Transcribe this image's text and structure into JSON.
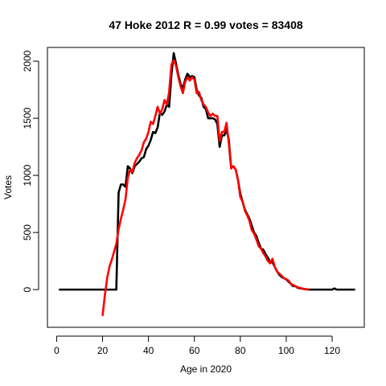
{
  "chart_data": {
    "type": "line",
    "title": "47 Hoke 2012 R = 0.99 votes = 83408",
    "xlabel": "Age in 2020",
    "ylabel": "Votes",
    "xlim": [
      -4,
      134
    ],
    "ylim": [
      -330,
      2120
    ],
    "x_ticks": [
      0,
      20,
      40,
      60,
      80,
      100,
      120
    ],
    "y_ticks": [
      0,
      500,
      1000,
      1500,
      2000
    ],
    "grid": false,
    "legend": "none",
    "series": [
      {
        "color": "#000000",
        "points": [
          [
            1,
            0
          ],
          [
            5,
            0
          ],
          [
            10,
            0
          ],
          [
            15,
            0
          ],
          [
            20,
            0
          ],
          [
            24,
            0
          ],
          [
            26,
            0
          ],
          [
            27,
            850
          ],
          [
            28,
            920
          ],
          [
            29,
            920
          ],
          [
            30,
            900
          ],
          [
            31,
            1080
          ],
          [
            32,
            1060
          ],
          [
            33,
            1020
          ],
          [
            34,
            1080
          ],
          [
            35,
            1100
          ],
          [
            36,
            1120
          ],
          [
            37,
            1150
          ],
          [
            38,
            1160
          ],
          [
            39,
            1230
          ],
          [
            40,
            1260
          ],
          [
            41,
            1310
          ],
          [
            42,
            1380
          ],
          [
            43,
            1370
          ],
          [
            44,
            1420
          ],
          [
            45,
            1550
          ],
          [
            46,
            1530
          ],
          [
            47,
            1560
          ],
          [
            48,
            1620
          ],
          [
            49,
            1600
          ],
          [
            50,
            1880
          ],
          [
            51,
            2070
          ],
          [
            52,
            1980
          ],
          [
            53,
            1880
          ],
          [
            54,
            1800
          ],
          [
            55,
            1760
          ],
          [
            56,
            1840
          ],
          [
            57,
            1890
          ],
          [
            58,
            1860
          ],
          [
            59,
            1870
          ],
          [
            60,
            1860
          ],
          [
            61,
            1750
          ],
          [
            62,
            1700
          ],
          [
            63,
            1680
          ],
          [
            64,
            1600
          ],
          [
            65,
            1580
          ],
          [
            66,
            1500
          ],
          [
            67,
            1500
          ],
          [
            68,
            1500
          ],
          [
            69,
            1490
          ],
          [
            70,
            1450
          ],
          [
            71,
            1250
          ],
          [
            72,
            1350
          ],
          [
            73,
            1350
          ],
          [
            74,
            1400
          ],
          [
            75,
            1310
          ],
          [
            76,
            1070
          ],
          [
            77,
            1080
          ],
          [
            78,
            1050
          ],
          [
            79,
            960
          ],
          [
            80,
            840
          ],
          [
            81,
            770
          ],
          [
            82,
            700
          ],
          [
            83,
            660
          ],
          [
            84,
            620
          ],
          [
            85,
            560
          ],
          [
            86,
            500
          ],
          [
            87,
            470
          ],
          [
            88,
            410
          ],
          [
            89,
            360
          ],
          [
            90,
            350
          ],
          [
            91,
            310
          ],
          [
            92,
            280
          ],
          [
            93,
            240
          ],
          [
            94,
            240
          ],
          [
            95,
            200
          ],
          [
            96,
            160
          ],
          [
            97,
            130
          ],
          [
            98,
            110
          ],
          [
            99,
            100
          ],
          [
            100,
            90
          ],
          [
            101,
            70
          ],
          [
            102,
            50
          ],
          [
            103,
            30
          ],
          [
            104,
            30
          ],
          [
            105,
            15
          ],
          [
            106,
            12
          ],
          [
            107,
            8
          ],
          [
            108,
            4
          ],
          [
            109,
            2
          ],
          [
            110,
            0
          ],
          [
            115,
            0
          ],
          [
            120,
            0
          ],
          [
            121,
            10
          ],
          [
            122,
            0
          ],
          [
            125,
            0
          ],
          [
            130,
            0
          ]
        ]
      },
      {
        "color": "#ff0000",
        "points": [
          [
            20,
            -230
          ],
          [
            21,
            -50
          ],
          [
            22,
            100
          ],
          [
            23,
            200
          ],
          [
            24,
            260
          ],
          [
            25,
            330
          ],
          [
            26,
            400
          ],
          [
            27,
            530
          ],
          [
            28,
            620
          ],
          [
            29,
            700
          ],
          [
            30,
            790
          ],
          [
            31,
            980
          ],
          [
            32,
            1050
          ],
          [
            33,
            1030
          ],
          [
            34,
            1110
          ],
          [
            35,
            1150
          ],
          [
            36,
            1180
          ],
          [
            37,
            1220
          ],
          [
            38,
            1290
          ],
          [
            39,
            1320
          ],
          [
            40,
            1380
          ],
          [
            41,
            1470
          ],
          [
            42,
            1450
          ],
          [
            43,
            1520
          ],
          [
            44,
            1600
          ],
          [
            45,
            1540
          ],
          [
            46,
            1580
          ],
          [
            47,
            1660
          ],
          [
            48,
            1620
          ],
          [
            49,
            1730
          ],
          [
            50,
            1970
          ],
          [
            51,
            2010
          ],
          [
            52,
            1960
          ],
          [
            53,
            1860
          ],
          [
            54,
            1780
          ],
          [
            55,
            1720
          ],
          [
            56,
            1820
          ],
          [
            57,
            1860
          ],
          [
            58,
            1830
          ],
          [
            59,
            1860
          ],
          [
            60,
            1840
          ],
          [
            61,
            1720
          ],
          [
            62,
            1730
          ],
          [
            63,
            1660
          ],
          [
            64,
            1620
          ],
          [
            65,
            1600
          ],
          [
            66,
            1550
          ],
          [
            67,
            1520
          ],
          [
            68,
            1540
          ],
          [
            69,
            1520
          ],
          [
            70,
            1520
          ],
          [
            71,
            1300
          ],
          [
            72,
            1380
          ],
          [
            73,
            1380
          ],
          [
            74,
            1460
          ],
          [
            75,
            1280
          ],
          [
            76,
            1060
          ],
          [
            77,
            1080
          ],
          [
            78,
            1050
          ],
          [
            79,
            960
          ],
          [
            80,
            810
          ],
          [
            81,
            770
          ],
          [
            82,
            690
          ],
          [
            83,
            650
          ],
          [
            84,
            600
          ],
          [
            85,
            520
          ],
          [
            86,
            490
          ],
          [
            87,
            440
          ],
          [
            88,
            380
          ],
          [
            89,
            360
          ],
          [
            90,
            320
          ],
          [
            91,
            290
          ],
          [
            92,
            250
          ],
          [
            93,
            230
          ],
          [
            94,
            270
          ],
          [
            95,
            200
          ],
          [
            96,
            160
          ],
          [
            97,
            140
          ],
          [
            98,
            120
          ],
          [
            99,
            100
          ],
          [
            100,
            90
          ],
          [
            101,
            80
          ],
          [
            102,
            50
          ],
          [
            103,
            40
          ],
          [
            104,
            30
          ],
          [
            105,
            20
          ],
          [
            106,
            15
          ],
          [
            107,
            10
          ],
          [
            108,
            5
          ],
          [
            109,
            3
          ],
          [
            110,
            0
          ]
        ]
      }
    ]
  }
}
